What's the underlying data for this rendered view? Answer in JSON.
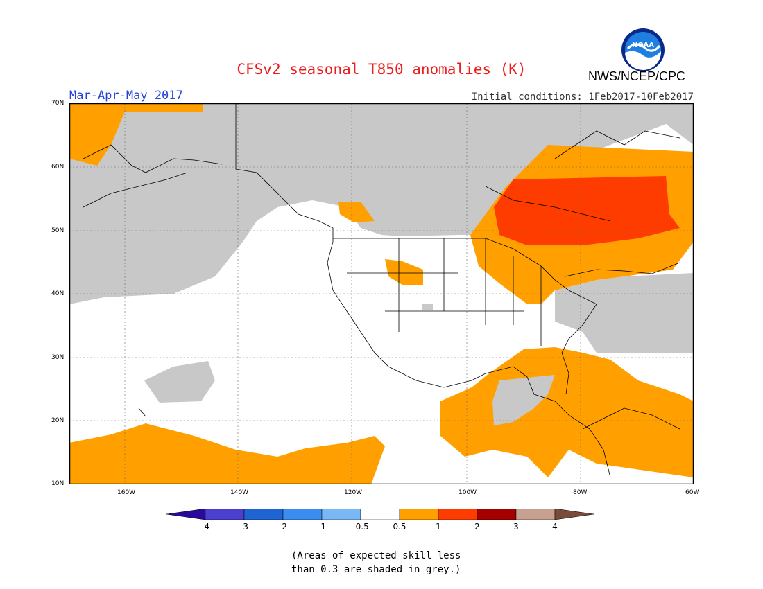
{
  "header": {
    "title": "CFSv2 seasonal T850 anomalies (K)",
    "period": "Mar-Apr-May 2017",
    "initial_conditions": "Initial conditions: 1Feb2017-10Feb2017",
    "agency": "NWS/NCEP/CPC",
    "logo_text": "NOAA"
  },
  "map": {
    "lat_labels": [
      "70N",
      "60N",
      "50N",
      "40N",
      "30N",
      "20N",
      "10N"
    ],
    "lon_labels": [
      "160W",
      "140W",
      "120W",
      "100W",
      "80W",
      "60W"
    ],
    "colors": {
      "grey": "#c8c8c8",
      "orange": "#ffa000",
      "red": "#ff3c00",
      "land_outline": "#000000"
    }
  },
  "colorbar": {
    "labels": [
      "-4",
      "-3",
      "-2",
      "-1",
      "-0.5",
      "0.5",
      "1",
      "2",
      "3",
      "4"
    ],
    "colors": [
      "#2a0a9a",
      "#4b3fcf",
      "#1e64d2",
      "#3a8ef0",
      "#7ab8f5",
      "#ffffff",
      "#ffa000",
      "#ff3c00",
      "#a50000",
      "#c8a090",
      "#7a4a3a"
    ]
  },
  "footnote": {
    "line1": "(Areas of expected skill less",
    "line2": "than 0.3 are shaded in grey.)"
  }
}
